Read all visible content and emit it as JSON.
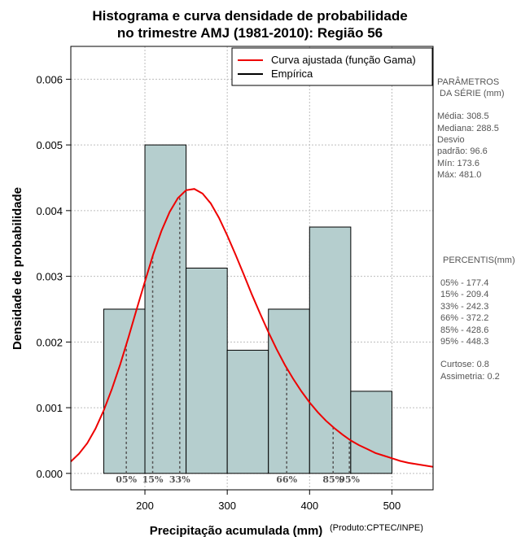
{
  "colors": {
    "bar_fill": "#b5cece",
    "curve": "#ee0000",
    "percentile_line": "#555555",
    "grid": "#bdbdbd"
  },
  "chart_data": {
    "type": "bar",
    "title_line1": "Histograma e curva densidade de probabilidade",
    "title_line2": "no trimestre AMJ (1981-2010): Região 56",
    "xlabel": "Precipitação acumulada (mm)",
    "ylabel": "Densidade de probabilidade",
    "credit": "(Produto:CPTEC/INPE)",
    "xlim": [
      110,
      550
    ],
    "ylim": [
      -0.00025,
      0.0065
    ],
    "xticks": [
      200,
      300,
      400,
      500
    ],
    "yticks": [
      "0.000",
      "0.001",
      "0.002",
      "0.003",
      "0.004",
      "0.005",
      "0.006"
    ],
    "grid": true,
    "legend_position": "top-right",
    "legend": [
      {
        "label": "Curva ajustada (função Gama)",
        "color": "#ee0000"
      },
      {
        "label": "Empírica",
        "color": "#000000"
      }
    ],
    "bars": [
      {
        "x0": 150,
        "x1": 200,
        "density": 0.0025
      },
      {
        "x0": 200,
        "x1": 250,
        "density": 0.005
      },
      {
        "x0": 250,
        "x1": 300,
        "density": 0.003125
      },
      {
        "x0": 300,
        "x1": 350,
        "density": 0.001875
      },
      {
        "x0": 350,
        "x1": 400,
        "density": 0.0025
      },
      {
        "x0": 400,
        "x1": 450,
        "density": 0.00375
      },
      {
        "x0": 450,
        "x1": 500,
        "density": 0.00125
      }
    ],
    "fitted_curve": {
      "distribution": "gamma",
      "x": [
        110,
        120,
        130,
        140,
        150,
        160,
        170,
        180,
        190,
        200,
        210,
        220,
        230,
        240,
        250,
        260,
        270,
        280,
        290,
        300,
        310,
        320,
        330,
        340,
        350,
        360,
        370,
        380,
        390,
        400,
        410,
        420,
        430,
        440,
        450,
        460,
        470,
        480,
        490,
        500,
        510,
        520,
        530,
        540,
        550
      ],
      "y": [
        0.00018,
        0.0003,
        0.00046,
        0.00068,
        0.00096,
        0.00129,
        0.00166,
        0.00207,
        0.0025,
        0.00292,
        0.00333,
        0.00369,
        0.00398,
        0.00419,
        0.00431,
        0.00433,
        0.00426,
        0.00411,
        0.00389,
        0.00362,
        0.00333,
        0.00303,
        0.00272,
        0.00243,
        0.00215,
        0.00189,
        0.00165,
        0.00144,
        0.00125,
        0.00108,
        0.00093,
        0.0008,
        0.00069,
        0.00059,
        0.0005,
        0.00043,
        0.00037,
        0.00031,
        0.00027,
        0.00023,
        0.00019,
        0.00016,
        0.00014,
        0.00012,
        0.0001
      ]
    },
    "percentile_lines": [
      {
        "label": "05%",
        "x": 177.4
      },
      {
        "label": "15%",
        "x": 209.4
      },
      {
        "label": "33%",
        "x": 242.3
      },
      {
        "label": "66%",
        "x": 372.2
      },
      {
        "label": "85%",
        "x": 428.6
      },
      {
        "label": "95%",
        "x": 448.3
      }
    ]
  },
  "side_panel": {
    "params_title_1": "PARÂMETROS",
    "params_title_2": " DA SÉRIE (mm)",
    "params": [
      "Média:  308.5",
      "Mediana:  288.5",
      "Desvio",
      "padrão:  96.6",
      "Mín:  173.6",
      "Máx:  481.0"
    ],
    "percentis_title": "PERCENTIS(mm)",
    "percentis": [
      "05% -  177.4",
      "15% -  209.4",
      "33% -  242.3",
      "66% -  372.2",
      "85% -  428.6",
      "95% -  448.3"
    ],
    "curtose": "Curtose:  0.8",
    "assimetria": "Assimetria:  0.2"
  }
}
